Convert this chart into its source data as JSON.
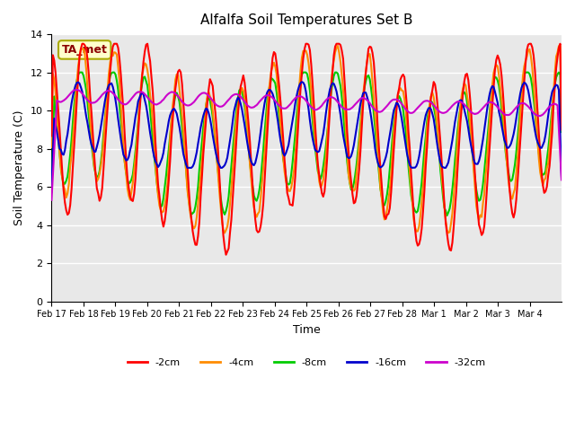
{
  "title": "Alfalfa Soil Temperatures Set B",
  "xlabel": "Time",
  "ylabel": "Soil Temperature (C)",
  "ylim": [
    0,
    14
  ],
  "yticks": [
    0,
    2,
    4,
    6,
    8,
    10,
    12,
    14
  ],
  "background_color": "#ffffff",
  "plot_bg_color": "#e8e8e8",
  "grid_color": "#ffffff",
  "annotation_text": "TA_met",
  "annotation_color": "#8b0000",
  "annotation_bg": "#ffffcc",
  "legend_labels": [
    "-2cm",
    "-4cm",
    "-8cm",
    "-16cm",
    "-32cm"
  ],
  "line_colors": [
    "#ff0000",
    "#ff8c00",
    "#00cc00",
    "#0000cc",
    "#cc00cc"
  ],
  "line_widths": [
    1.5,
    1.5,
    1.5,
    1.5,
    1.5
  ],
  "date_labels": [
    "Feb 17",
    "Feb 18",
    "Feb 19",
    "Feb 20",
    "Feb 21",
    "Feb 22",
    "Feb 23",
    "Feb 24",
    "Feb 25",
    "Feb 26",
    "Feb 27",
    "Feb 28",
    "Mar 1",
    "Mar 2",
    "Mar 3",
    "Mar 4"
  ],
  "n_days": 16
}
